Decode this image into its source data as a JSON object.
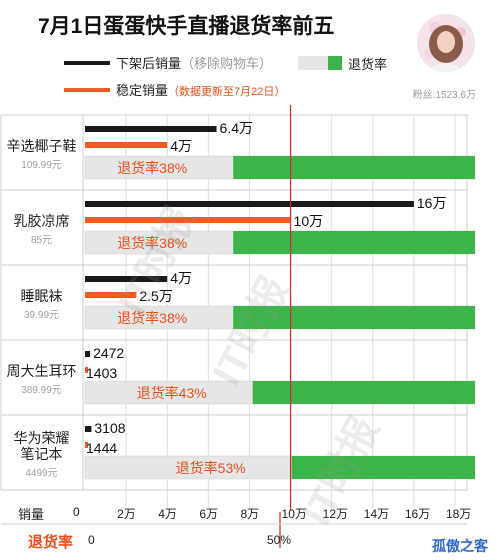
{
  "title": "7月1日蛋蛋快手直播退货率前五",
  "legend": {
    "removed_label": "下架后销量",
    "removed_note": "（移除购物车）",
    "stable_label": "稳定销量",
    "stable_note": "（数据更新至7月22日）",
    "rate_label": "退货率"
  },
  "fans_text": "粉丝:1523.6万",
  "watermark": "IT时报",
  "footer_brand": "孤傲之客",
  "colors": {
    "removed": "#1a1a1a",
    "stable": "#f05a22",
    "rate": "#3cb44a",
    "rate_bg": "#e6e6e6",
    "refline": "#d6262b",
    "rate_text": "#e8501b"
  },
  "chart_data": {
    "type": "bar",
    "orientation": "horizontal",
    "sales_unit": "万",
    "x_axis_label": "销量",
    "x_ticks": [
      "0",
      "2万",
      "4万",
      "6万",
      "8万",
      "10万",
      "12万",
      "14万",
      "16万",
      "18万"
    ],
    "x_tick_values": [
      0,
      2,
      4,
      6,
      8,
      10,
      12,
      14,
      16,
      18
    ],
    "xlim": [
      0,
      18
    ],
    "rate_axis_label": "退货率",
    "rate_ticks": [
      "0",
      "50%"
    ],
    "rate_lim": [
      0,
      100
    ],
    "categories": [
      "辛选椰子鞋",
      "乳胶凉席",
      "睡眠袜",
      "周大生耳环",
      "华为荣耀笔记本"
    ],
    "category_lines": [
      [
        "辛选椰子鞋"
      ],
      [
        "乳胶凉席"
      ],
      [
        "睡眠袜"
      ],
      [
        "周大生耳环"
      ],
      [
        "华为荣耀",
        "笔记本"
      ]
    ],
    "prices": [
      "109.99元",
      "85元",
      "39.99元",
      "389.99元",
      "4499元"
    ],
    "series": [
      {
        "name": "下架后销量",
        "values": [
          6.4,
          16,
          4,
          0.2472,
          0.3108
        ],
        "labels": [
          "6.4万",
          "16万",
          "4万",
          "2472",
          "3108"
        ]
      },
      {
        "name": "稳定销量",
        "values": [
          4,
          10,
          2.5,
          0.1403,
          0.1444
        ],
        "labels": [
          "4万",
          "10万",
          "2.5万",
          "1403",
          "1444"
        ]
      }
    ],
    "return_rate": [
      38,
      38,
      38,
      43,
      53
    ],
    "return_rate_labels": [
      "退货率38%",
      "退货率38%",
      "退货率38%",
      "退货率43%",
      "退货率53%"
    ],
    "reference_lines": [
      "10万",
      "50%"
    ],
    "grid": true
  }
}
